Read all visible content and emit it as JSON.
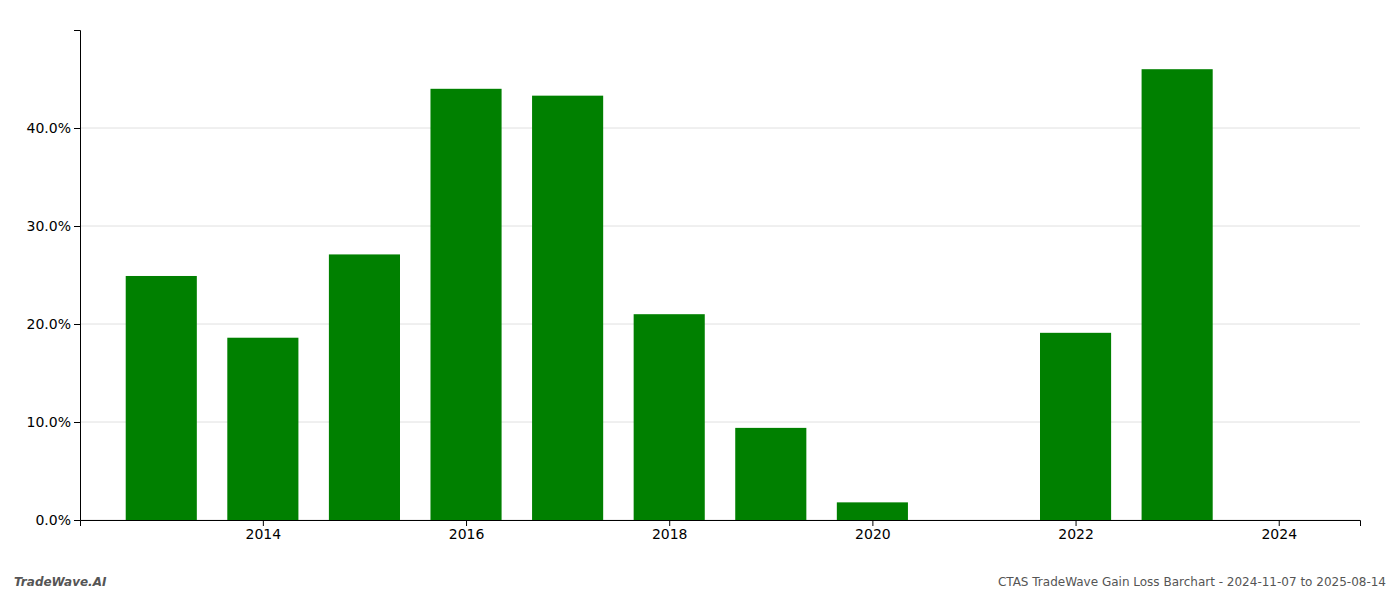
{
  "chart_data": {
    "type": "bar",
    "x": [
      2013,
      2014,
      2015,
      2016,
      2017,
      2018,
      2019,
      2020,
      2022,
      2023
    ],
    "values": [
      0.249,
      0.186,
      0.271,
      0.44,
      0.433,
      0.21,
      0.094,
      0.018,
      0.191,
      0.46
    ],
    "color": "#008000",
    "xlim": [
      2012.2,
      2024.8
    ],
    "xticks": [
      2014,
      2016,
      2018,
      2020,
      2022,
      2024
    ],
    "ylim": [
      0.0,
      0.5
    ],
    "yticks": [
      {
        "value": 0.0,
        "label": "0.0%"
      },
      {
        "value": 0.1,
        "label": "10.0%"
      },
      {
        "value": 0.2,
        "label": "20.0%"
      },
      {
        "value": 0.3,
        "label": "30.0%"
      },
      {
        "value": 0.4,
        "label": "40.0%"
      }
    ],
    "grid": true,
    "annotations": [
      "TradeWave.AI",
      "CTAS TradeWave Gain Loss Barchart - 2024-11-07 to 2025-08-14"
    ]
  }
}
